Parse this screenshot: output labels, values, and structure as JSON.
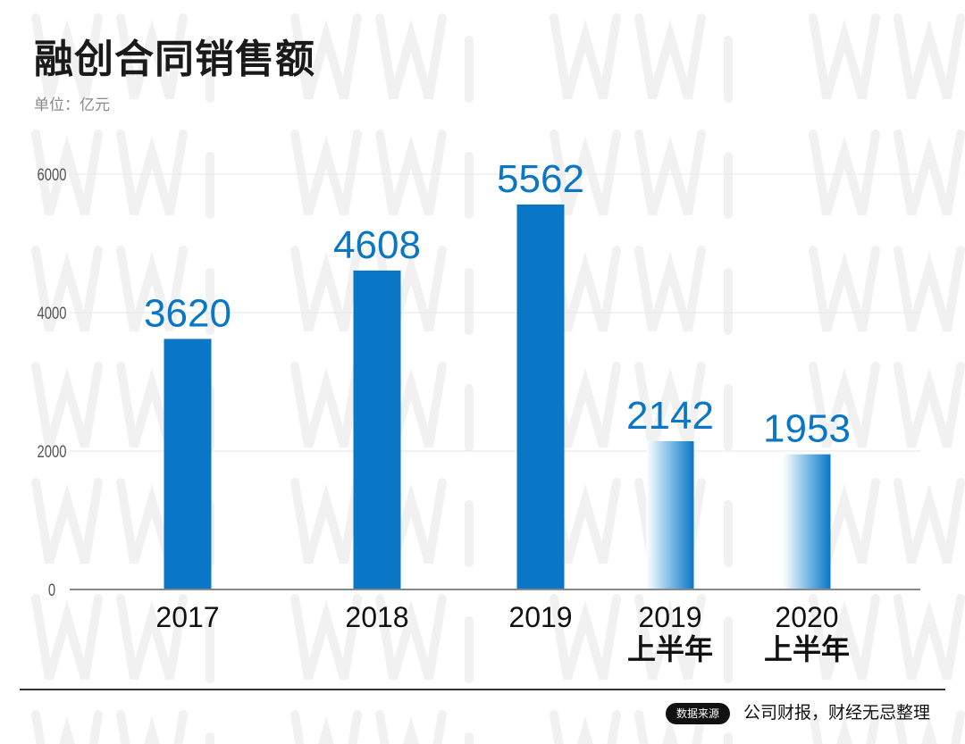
{
  "title": "融创合同销售额",
  "unit_label": "单位：亿元",
  "source_badge": "数据来源",
  "source_text": "公司财报，财经无忌整理",
  "colors": {
    "bar": "#0a76c6",
    "label": "#0a76c6",
    "axis": "#555555",
    "grid": "#e6e6e6"
  },
  "chart_data": {
    "type": "bar",
    "categories": [
      [
        "2017"
      ],
      [
        "2018"
      ],
      [
        "2019"
      ],
      [
        "2019",
        "上半年"
      ],
      [
        "2020",
        "上半年"
      ]
    ],
    "values": [
      3620,
      4608,
      5562,
      2142,
      1953
    ],
    "value_labels": [
      "3620",
      "4608",
      "5562",
      "2142",
      "1953"
    ],
    "gradient_fill": [
      false,
      false,
      false,
      true,
      true
    ],
    "ylim": [
      0,
      6000
    ],
    "yticks": [
      0,
      2000,
      4000,
      6000
    ],
    "grid": true
  }
}
